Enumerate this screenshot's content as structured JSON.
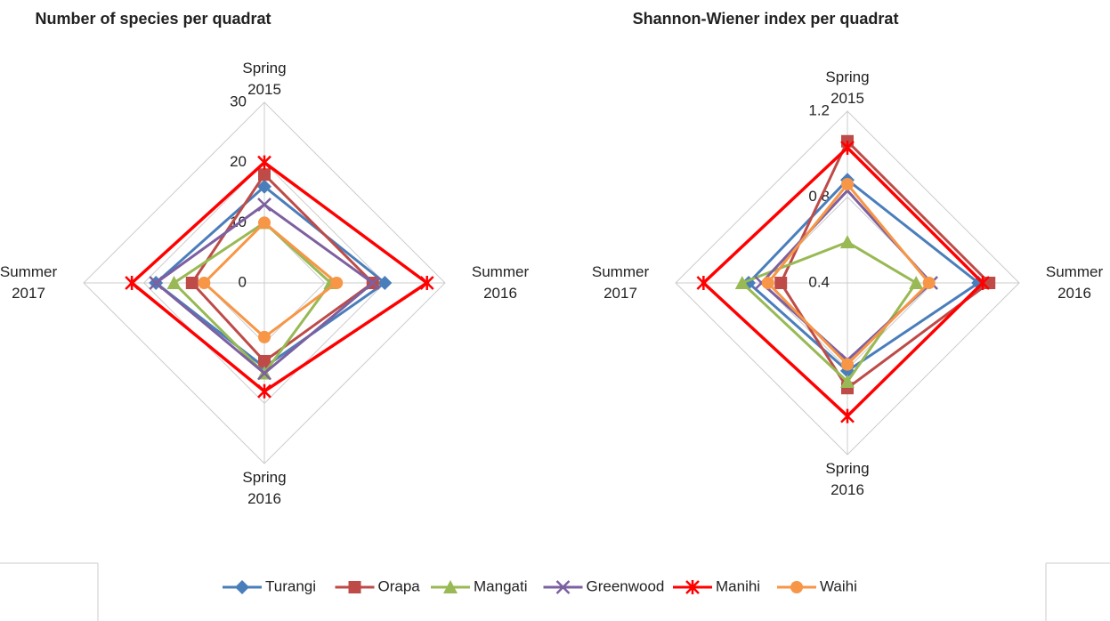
{
  "chart_data": [
    {
      "type": "radar",
      "title": "Number of species per quadrat",
      "categories": [
        "Spring 2015",
        "Summer 2016",
        "Spring 2016",
        "Summer 2017"
      ],
      "ylim": [
        0,
        30
      ],
      "yticks": [
        0,
        10,
        20,
        30
      ],
      "series": [
        {
          "name": "Turangi",
          "color": "#4a7ebb",
          "marker": "diamond",
          "values": [
            16,
            20,
            14,
            18
          ]
        },
        {
          "name": "Orapa",
          "color": "#be4b48",
          "marker": "square",
          "values": [
            18,
            18,
            13,
            12
          ]
        },
        {
          "name": "Mangati",
          "color": "#98b954",
          "marker": "triangle",
          "values": [
            10,
            11,
            15,
            15
          ]
        },
        {
          "name": "Greenwood",
          "color": "#7d60a0",
          "marker": "x",
          "values": [
            13,
            18,
            15,
            18
          ]
        },
        {
          "name": "Manihi",
          "color": "#ff0000",
          "marker": "star",
          "values": [
            20,
            27,
            18,
            22
          ]
        },
        {
          "name": "Waihi",
          "color": "#f79646",
          "marker": "circle",
          "values": [
            10,
            12,
            9,
            10
          ]
        }
      ]
    },
    {
      "type": "radar",
      "title": "Shannon-Wiener index per quadrat",
      "categories": [
        "Spring 2015",
        "Summer 2016",
        "Spring 2016",
        "Summer 2017"
      ],
      "ylim": [
        0.4,
        1.2
      ],
      "yticks": [
        0.4,
        0.8,
        1.2
      ],
      "series": [
        {
          "name": "Turangi",
          "color": "#4a7ebb",
          "marker": "diamond",
          "values": [
            0.88,
            1.01,
            0.81,
            0.86
          ]
        },
        {
          "name": "Orapa",
          "color": "#be4b48",
          "marker": "square",
          "values": [
            1.06,
            1.06,
            0.89,
            0.71
          ]
        },
        {
          "name": "Mangati",
          "color": "#98b954",
          "marker": "triangle",
          "values": [
            0.59,
            0.72,
            0.86,
            0.89
          ]
        },
        {
          "name": "Greenwood",
          "color": "#7d60a0",
          "marker": "x",
          "values": [
            0.83,
            0.79,
            0.76,
            0.8
          ]
        },
        {
          "name": "Manihi",
          "color": "#ff0000",
          "marker": "star",
          "values": [
            1.03,
            1.03,
            1.02,
            1.07
          ]
        },
        {
          "name": "Waihi",
          "color": "#f79646",
          "marker": "circle",
          "values": [
            0.86,
            0.78,
            0.78,
            0.77
          ]
        }
      ]
    }
  ]
}
